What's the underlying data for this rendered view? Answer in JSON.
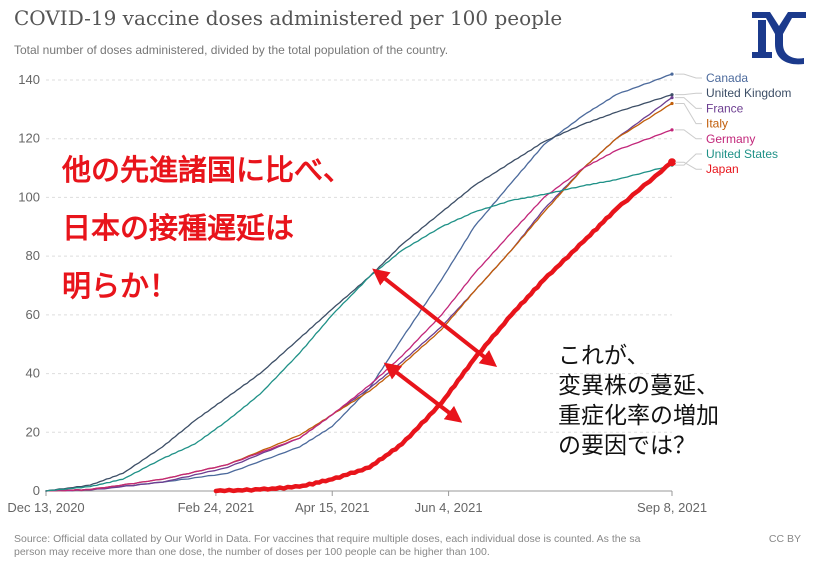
{
  "chart_data": {
    "type": "line",
    "title": "COVID-19 vaccine doses administered per 100 people",
    "subtitle": "Total number of doses administered, divided by the total population of the country.",
    "source_line_1": "Source: Official data collated by Our World in Data. For vaccines that require multiple doses, each individual dose is counted. As the sa",
    "source_line_2": "person may receive more than one dose, the number of doses per 100 people can be higher than 100.",
    "license": "CC BY",
    "x_tick_labels": [
      "Dec 13, 2020",
      "Feb 24, 2021",
      "Apr 15, 2021",
      "Jun 4, 2021",
      "Sep 8, 2021"
    ],
    "x_ticks": [
      "2020-12-13",
      "2021-02-24",
      "2021-04-15",
      "2021-06-04",
      "2021-09-08"
    ],
    "xlim": [
      "2020-12-13",
      "2021-09-08"
    ],
    "ylim": [
      0,
      140
    ],
    "y_ticks": [
      0,
      20,
      40,
      60,
      80,
      100,
      120,
      140
    ],
    "grid": true,
    "legend": "right",
    "series": [
      {
        "name": "Canada",
        "color": "#4c6a9c",
        "x": [
          "2020-12-13",
          "2021-01-01",
          "2021-02-01",
          "2021-03-01",
          "2021-04-01",
          "2021-04-15",
          "2021-05-01",
          "2021-05-15",
          "2021-06-01",
          "2021-06-15",
          "2021-07-01",
          "2021-07-15",
          "2021-08-01",
          "2021-08-15",
          "2021-09-08"
        ],
        "y": [
          0,
          0.5,
          3,
          6,
          15,
          22,
          35,
          52,
          72,
          90,
          105,
          118,
          128,
          135,
          142
        ]
      },
      {
        "name": "United Kingdom",
        "color": "#3c4e66",
        "x": [
          "2020-12-13",
          "2021-01-01",
          "2021-01-15",
          "2021-02-01",
          "2021-02-15",
          "2021-03-01",
          "2021-03-15",
          "2021-04-01",
          "2021-04-15",
          "2021-05-01",
          "2021-05-15",
          "2021-06-01",
          "2021-06-15",
          "2021-07-01",
          "2021-07-15",
          "2021-08-01",
          "2021-08-15",
          "2021-09-08"
        ],
        "y": [
          0,
          2,
          6,
          15,
          24,
          32,
          40,
          52,
          62,
          73,
          84,
          95,
          104,
          112,
          119,
          125,
          129,
          135
        ]
      },
      {
        "name": "France",
        "color": "#6d3e91",
        "x": [
          "2020-12-13",
          "2021-01-01",
          "2021-02-01",
          "2021-03-01",
          "2021-04-01",
          "2021-04-15",
          "2021-05-01",
          "2021-05-15",
          "2021-06-01",
          "2021-06-15",
          "2021-07-01",
          "2021-07-15",
          "2021-08-01",
          "2021-08-15",
          "2021-09-08"
        ],
        "y": [
          0,
          0.3,
          3,
          8,
          18,
          26,
          35,
          44,
          56,
          68,
          82,
          96,
          110,
          120,
          134
        ]
      },
      {
        "name": "Italy",
        "color": "#c15e0a",
        "x": [
          "2020-12-13",
          "2021-01-01",
          "2021-02-01",
          "2021-03-01",
          "2021-04-01",
          "2021-04-15",
          "2021-05-01",
          "2021-05-15",
          "2021-06-01",
          "2021-06-15",
          "2021-07-01",
          "2021-07-15",
          "2021-08-01",
          "2021-08-15",
          "2021-09-08"
        ],
        "y": [
          0,
          0.5,
          4,
          9,
          19,
          26,
          34,
          43,
          55,
          68,
          82,
          95,
          110,
          120,
          132
        ]
      },
      {
        "name": "Germany",
        "color": "#c2267a",
        "x": [
          "2020-12-13",
          "2021-01-01",
          "2021-02-01",
          "2021-03-01",
          "2021-04-01",
          "2021-04-15",
          "2021-05-01",
          "2021-05-15",
          "2021-06-01",
          "2021-06-15",
          "2021-07-01",
          "2021-07-15",
          "2021-08-01",
          "2021-08-15",
          "2021-09-08"
        ],
        "y": [
          0,
          0.5,
          4,
          9,
          18,
          26,
          36,
          46,
          60,
          74,
          88,
          100,
          110,
          116,
          123
        ]
      },
      {
        "name": "United States",
        "color": "#1f9187",
        "x": [
          "2020-12-13",
          "2021-01-01",
          "2021-01-15",
          "2021-02-01",
          "2021-02-15",
          "2021-03-01",
          "2021-03-15",
          "2021-04-01",
          "2021-04-15",
          "2021-05-01",
          "2021-05-15",
          "2021-06-01",
          "2021-06-15",
          "2021-07-01",
          "2021-07-15",
          "2021-08-01",
          "2021-08-15",
          "2021-09-08"
        ],
        "y": [
          0,
          1.5,
          4,
          11,
          16,
          24,
          33,
          47,
          60,
          73,
          82,
          90,
          95,
          99,
          101,
          104,
          106,
          111
        ]
      },
      {
        "name": "Japan",
        "color": "#e8141b",
        "x": [
          "2021-02-24",
          "2021-03-15",
          "2021-04-01",
          "2021-04-15",
          "2021-05-01",
          "2021-05-15",
          "2021-06-01",
          "2021-06-15",
          "2021-07-01",
          "2021-07-15",
          "2021-08-01",
          "2021-08-15",
          "2021-09-08"
        ],
        "y": [
          0,
          0.5,
          1.5,
          4,
          8,
          16,
          30,
          45,
          60,
          72,
          85,
          96,
          112
        ]
      }
    ]
  },
  "annotations": {
    "left_lines": [
      "他の先進諸国に比べ、",
      "日本の接種遅延は",
      "明らか！"
    ],
    "right_lines": [
      "これが、",
      "変異株の蔓延、",
      "重症化率の増加",
      "の要因では？"
    ],
    "arrows": [
      {
        "from": [
          "2021-05-05",
          74
        ],
        "to": [
          "2021-06-22",
          44
        ]
      },
      {
        "from": [
          "2021-05-10",
          42
        ],
        "to": [
          "2021-06-07",
          25
        ]
      }
    ]
  },
  "logo": {
    "color": "#1b3a8c",
    "icon": "university-logo-icon"
  }
}
